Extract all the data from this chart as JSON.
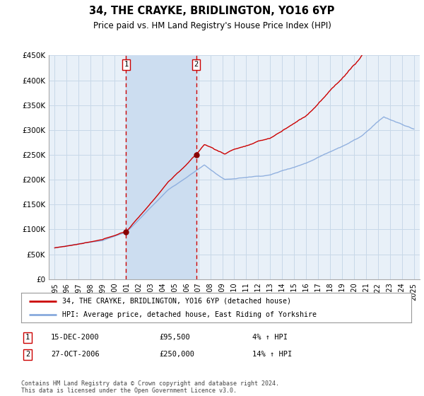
{
  "title": "34, THE CRAYKE, BRIDLINGTON, YO16 6YP",
  "subtitle": "Price paid vs. HM Land Registry's House Price Index (HPI)",
  "legend_line1": "34, THE CRAYKE, BRIDLINGTON, YO16 6YP (detached house)",
  "legend_line2": "HPI: Average price, detached house, East Riding of Yorkshire",
  "footnote": "Contains HM Land Registry data © Crown copyright and database right 2024.\nThis data is licensed under the Open Government Licence v3.0.",
  "sale1_date": "15-DEC-2000",
  "sale1_price": "£95,500",
  "sale1_hpi": "4% ↑ HPI",
  "sale2_date": "27-OCT-2006",
  "sale2_price": "£250,000",
  "sale2_hpi": "14% ↑ HPI",
  "sale1_year": 2000.96,
  "sale2_year": 2006.82,
  "sale1_value": 95500,
  "sale2_value": 250000,
  "ylim": [
    0,
    450000
  ],
  "xlim_start": 1994.5,
  "xlim_end": 2025.5,
  "background_color": "#ffffff",
  "plot_bg_color": "#e8f0f8",
  "grid_color": "#c8d8e8",
  "line_color_red": "#cc0000",
  "line_color_blue": "#88aadd",
  "vline_color": "#cc0000",
  "sale_marker_color": "#880000",
  "shade_color": "#ccddf0",
  "yticks": [
    0,
    50000,
    100000,
    150000,
    200000,
    250000,
    300000,
    350000,
    400000,
    450000
  ],
  "ytick_labels": [
    "£0",
    "£50K",
    "£100K",
    "£150K",
    "£200K",
    "£250K",
    "£300K",
    "£350K",
    "£400K",
    "£450K"
  ],
  "xticks": [
    1995,
    1996,
    1997,
    1998,
    1999,
    2000,
    2001,
    2002,
    2003,
    2004,
    2005,
    2006,
    2007,
    2008,
    2009,
    2010,
    2011,
    2012,
    2013,
    2014,
    2015,
    2016,
    2017,
    2018,
    2019,
    2020,
    2021,
    2022,
    2023,
    2024,
    2025
  ]
}
